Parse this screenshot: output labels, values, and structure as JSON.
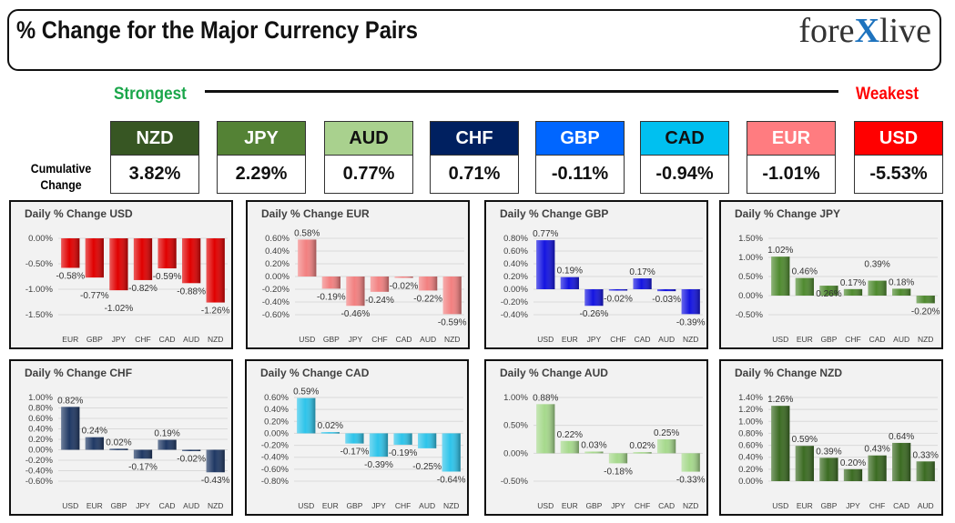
{
  "header": {
    "title": "% Change for the Major Currency Pairs",
    "logo": "forexlive"
  },
  "ranking": {
    "strongest": "Strongest",
    "weakest": "Weakest",
    "cumulative_label": "Cumulative Change",
    "currencies": [
      {
        "name": "NZD",
        "value": "3.82%",
        "color": "#375623",
        "text": "#ffffff"
      },
      {
        "name": "JPY",
        "value": "2.29%",
        "color": "#548235",
        "text": "#ffffff"
      },
      {
        "name": "AUD",
        "value": "0.77%",
        "color": "#a9d18e",
        "text": "#111111"
      },
      {
        "name": "CHF",
        "value": "0.71%",
        "color": "#002060",
        "text": "#ffffff"
      },
      {
        "name": "GBP",
        "value": "-0.11%",
        "color": "#0066ff",
        "text": "#ffffff"
      },
      {
        "name": "CAD",
        "value": "-0.94%",
        "color": "#00c0f0",
        "text": "#111111"
      },
      {
        "name": "EUR",
        "value": "-1.01%",
        "color": "#ff7c80",
        "text": "#ffffff"
      },
      {
        "name": "USD",
        "value": "-5.53%",
        "color": "#ff0000",
        "text": "#ffffff"
      }
    ]
  },
  "chart_data": [
    {
      "type": "bar",
      "title": "Daily % Change USD",
      "color": "#e00000",
      "categories": [
        "EUR",
        "GBP",
        "JPY",
        "CHF",
        "CAD",
        "AUD",
        "NZD"
      ],
      "values": [
        -0.58,
        -0.77,
        -1.02,
        -0.82,
        -0.59,
        -0.88,
        -1.26
      ],
      "ylim": [
        -1.5,
        0
      ],
      "ystep": 0.5,
      "grid": true
    },
    {
      "type": "bar",
      "title": "Daily % Change EUR",
      "color": "#f28080",
      "categories": [
        "USD",
        "GBP",
        "JPY",
        "CHF",
        "CAD",
        "AUD",
        "NZD"
      ],
      "values": [
        0.58,
        -0.19,
        -0.46,
        -0.24,
        -0.02,
        -0.22,
        -0.59
      ],
      "ylim": [
        -0.6,
        0.6
      ],
      "ystep": 0.2,
      "grid": true
    },
    {
      "type": "bar",
      "title": "Daily % Change GBP",
      "color": "#1414e0",
      "categories": [
        "USD",
        "EUR",
        "JPY",
        "CHF",
        "CAD",
        "AUD",
        "NZD"
      ],
      "values": [
        0.77,
        0.19,
        -0.26,
        -0.02,
        0.17,
        -0.03,
        -0.39
      ],
      "ylim": [
        -0.4,
        0.8
      ],
      "ystep": 0.2,
      "grid": true
    },
    {
      "type": "bar",
      "title": "Daily % Change JPY",
      "color": "#4f8a2f",
      "categories": [
        "USD",
        "EUR",
        "GBP",
        "CHF",
        "CAD",
        "AUD",
        "NZD"
      ],
      "values": [
        1.02,
        0.46,
        0.26,
        0.17,
        0.39,
        0.18,
        -0.2
      ],
      "ylim": [
        -0.5,
        1.5
      ],
      "ystep": 0.5,
      "grid": true
    },
    {
      "type": "bar",
      "title": "Daily % Change CHF",
      "color": "#1f3864",
      "categories": [
        "USD",
        "EUR",
        "GBP",
        "JPY",
        "CAD",
        "AUD",
        "NZD"
      ],
      "values": [
        0.82,
        0.24,
        0.02,
        -0.17,
        0.19,
        -0.02,
        -0.43
      ],
      "ylim": [
        -0.6,
        1.0
      ],
      "ystep": 0.2,
      "grid": true
    },
    {
      "type": "bar",
      "title": "Daily % Change CAD",
      "color": "#2ec4ea",
      "categories": [
        "USD",
        "EUR",
        "GBP",
        "JPY",
        "CHF",
        "AUD",
        "NZD"
      ],
      "values": [
        0.59,
        0.02,
        -0.17,
        -0.39,
        -0.19,
        -0.25,
        -0.64
      ],
      "ylim": [
        -0.8,
        0.6
      ],
      "ystep": 0.2,
      "grid": true
    },
    {
      "type": "bar",
      "title": "Daily % Change AUD",
      "color": "#a6d98c",
      "categories": [
        "USD",
        "EUR",
        "GBP",
        "JPY",
        "CHF",
        "CAD",
        "NZD"
      ],
      "values": [
        0.88,
        0.22,
        0.03,
        -0.18,
        0.02,
        0.25,
        -0.33
      ],
      "ylim": [
        -0.5,
        1.0
      ],
      "ystep": 0.5,
      "grid": true
    },
    {
      "type": "bar",
      "title": "Daily % Change NZD",
      "color": "#3b6b22",
      "categories": [
        "USD",
        "EUR",
        "GBP",
        "JPY",
        "CHF",
        "CAD",
        "AUD"
      ],
      "values": [
        1.26,
        0.59,
        0.39,
        0.2,
        0.43,
        0.64,
        0.33
      ],
      "ylim": [
        0,
        1.4
      ],
      "ystep": 0.2,
      "grid": true
    }
  ]
}
